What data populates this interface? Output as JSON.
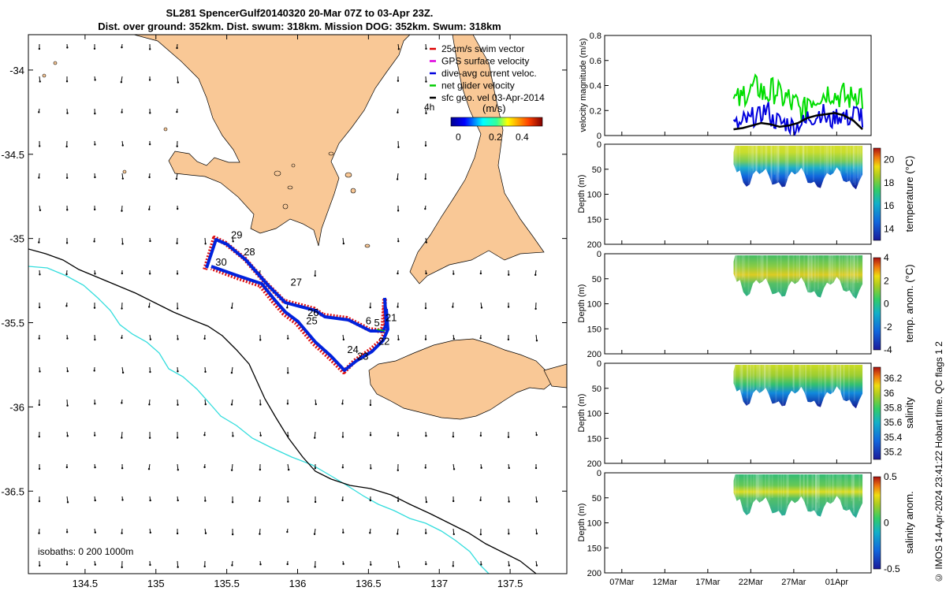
{
  "title": {
    "line1": "SL281 SpencerGulf20140320 20-Mar 07Z to 03-Apr 23Z.",
    "line2": "Dist. over ground: 352km. Dist. swum: 318km. Mission DOG: 352km. Swum: 318km"
  },
  "credit": "© IMOS 14-Apr-2024 23:41:22 Hobart time. QC flags 1  2",
  "map": {
    "legend": [
      {
        "label": "25cm/s swim vector",
        "color": "#dd0000"
      },
      {
        "label": "GPS surface velocity",
        "color": "#dd00dd"
      },
      {
        "label": "dive-avg current veloc.",
        "color": "#0000dd"
      },
      {
        "label": "net glider velocity",
        "color": "#00cc00"
      },
      {
        "label": "sfc geo. vel 03-Apr-2014",
        "color": "#000000"
      }
    ],
    "colorbar_label": "(m/s)",
    "colorbar_ticks": [
      "0",
      "0.2",
      "0.4"
    ],
    "colorbar_side": "4h",
    "isobaths_label": "isobaths: 0   200  1000m",
    "lon_ticks": [
      "134.5",
      "135",
      "135.5",
      "136",
      "136.5",
      "137",
      "137.5"
    ],
    "lat_ticks": [
      "-34",
      "-34.5",
      "-35",
      "-35.5",
      "-36",
      "-36.5"
    ],
    "day_labels": [
      {
        "t": "29",
        "lon": 135.53,
        "lat": -35.0
      },
      {
        "t": "28",
        "lon": 135.62,
        "lat": -35.1
      },
      {
        "t": "30",
        "lon": 135.42,
        "lat": -35.16
      },
      {
        "t": "27",
        "lon": 135.95,
        "lat": -35.28
      },
      {
        "t": "26",
        "lon": 136.07,
        "lat": -35.46
      },
      {
        "t": "25",
        "lon": 136.06,
        "lat": -35.51
      },
      {
        "t": "6",
        "lon": 136.48,
        "lat": -35.51
      },
      {
        "t": "5",
        "lon": 136.54,
        "lat": -35.52
      },
      {
        "t": "21",
        "lon": 136.62,
        "lat": -35.49
      },
      {
        "t": "22",
        "lon": 136.57,
        "lat": -35.63
      },
      {
        "t": "24",
        "lon": 136.35,
        "lat": -35.68
      },
      {
        "t": "23",
        "lon": 136.42,
        "lat": -35.72
      }
    ],
    "colors": {
      "land": "#f9c896",
      "track_blue": "#0022dd",
      "track_red": "#dd1111",
      "iso200": "#000000",
      "iso1000": "#33dddd"
    }
  },
  "time_axis": {
    "ticks": [
      "07Mar",
      "12Mar",
      "17Mar",
      "22Mar",
      "27Mar",
      "01Apr"
    ]
  },
  "panels": [
    {
      "ylabel": "velocity magnitude (m/s)",
      "yticks": [
        "0",
        "0.2",
        "0.4",
        "0.6",
        "0.8"
      ]
    },
    {
      "ylabel": "Depth (m)",
      "yticks": [
        "0",
        "50",
        "100",
        "150",
        "200"
      ],
      "cbar_label": "temperature (°C)",
      "cbar_ticks": [
        "14",
        "16",
        "18",
        "20"
      ]
    },
    {
      "ylabel": "Depth (m)",
      "yticks": [
        "0",
        "50",
        "100",
        "150",
        "200"
      ],
      "cbar_label": "temp. anom. (°C)",
      "cbar_ticks": [
        "-4",
        "-2",
        "0",
        "2",
        "4"
      ]
    },
    {
      "ylabel": "Depth (m)",
      "yticks": [
        "0",
        "50",
        "100",
        "150",
        "200"
      ],
      "cbar_label": "salinity",
      "cbar_ticks": [
        "35.2",
        "35.4",
        "35.6",
        "35.8",
        "36",
        "36.2"
      ]
    },
    {
      "ylabel": "Depth (m)",
      "yticks": [
        "0",
        "50",
        "100",
        "150",
        "200"
      ],
      "cbar_label": "salinity anom.",
      "cbar_ticks": [
        "-0.5",
        "0",
        "0.5"
      ]
    }
  ],
  "chart_data": [
    {
      "type": "line",
      "title": "",
      "xlabel": "",
      "ylabel": "velocity magnitude (m/s)",
      "ylim": [
        0,
        0.8
      ],
      "xlim_days": [
        "05-Mar-2014",
        "05-Apr-2014"
      ],
      "series": [
        {
          "name": "net glider velocity",
          "color": "#00dd00",
          "x": [
            "20Mar",
            "21Mar",
            "22Mar",
            "23Mar",
            "24Mar",
            "25Mar",
            "26Mar",
            "27Mar",
            "28Mar",
            "29Mar",
            "30Mar",
            "31Mar",
            "01Apr",
            "02Apr",
            "03Apr"
          ],
          "values": [
            0.28,
            0.35,
            0.38,
            0.33,
            0.36,
            0.3,
            0.25,
            0.2,
            0.3,
            0.33,
            0.35,
            0.32,
            0.3,
            0.34,
            0.28
          ]
        },
        {
          "name": "dive-avg current veloc.",
          "color": "#0000dd",
          "x": [
            "20Mar",
            "21Mar",
            "22Mar",
            "23Mar",
            "24Mar",
            "25Mar",
            "26Mar",
            "27Mar",
            "28Mar",
            "29Mar",
            "30Mar",
            "31Mar",
            "01Apr",
            "02Apr",
            "03Apr"
          ],
          "values": [
            0.08,
            0.12,
            0.15,
            0.2,
            0.12,
            0.1,
            0.08,
            0.1,
            0.15,
            0.18,
            0.12,
            0.16,
            0.14,
            0.18,
            0.1
          ]
        },
        {
          "name": "sfc geo. vel 03-Apr-2014",
          "color": "#000000",
          "x": [
            "20Mar",
            "21Mar",
            "22Mar",
            "23Mar",
            "24Mar",
            "25Mar",
            "26Mar",
            "27Mar",
            "28Mar",
            "29Mar",
            "30Mar",
            "31Mar",
            "01Apr",
            "02Apr",
            "03Apr"
          ],
          "values": [
            0.05,
            0.06,
            0.08,
            0.1,
            0.09,
            0.07,
            0.08,
            0.1,
            0.14,
            0.16,
            0.17,
            0.18,
            0.16,
            0.12,
            0.05
          ]
        }
      ]
    },
    {
      "type": "heatmap",
      "ylabel": "Depth (m)",
      "cbar_label": "temperature (°C)",
      "clim": [
        13,
        21
      ],
      "ylim": [
        200,
        0
      ],
      "x_range": [
        "20Mar",
        "03Apr"
      ]
    },
    {
      "type": "heatmap",
      "ylabel": "Depth (m)",
      "cbar_label": "temp. anom. (°C)",
      "clim": [
        -4,
        4
      ],
      "ylim": [
        200,
        0
      ],
      "x_range": [
        "20Mar",
        "03Apr"
      ]
    },
    {
      "type": "heatmap",
      "ylabel": "Depth (m)",
      "cbar_label": "salinity",
      "clim": [
        35.1,
        36.35
      ],
      "ylim": [
        200,
        0
      ],
      "x_range": [
        "20Mar",
        "03Apr"
      ]
    },
    {
      "type": "heatmap",
      "ylabel": "Depth (m)",
      "cbar_label": "salinity anom.",
      "clim": [
        -0.5,
        0.5
      ],
      "ylim": [
        200,
        0
      ],
      "x_range": [
        "20Mar",
        "03Apr"
      ]
    }
  ]
}
